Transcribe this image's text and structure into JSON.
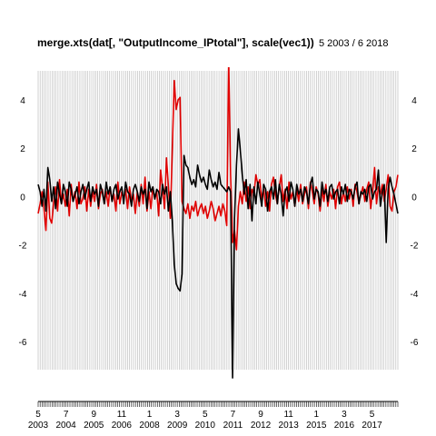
{
  "chart_data": {
    "type": "line",
    "title": "merge.xts(dat[, \"OutputIncome_IPtotal\"], scale(vec1))",
    "date_range_label": "5 2003 /  6 2018",
    "x_range": [
      "2003-05",
      "2018-06"
    ],
    "ylim": [
      -7.8,
      5.2
    ],
    "y_ticks": [
      -6,
      -4,
      -2,
      0,
      2,
      4
    ],
    "y_tick_labels": [
      "-6",
      "-4",
      "-2",
      "0",
      "2",
      "4"
    ],
    "x_tick_labels": [
      {
        "month": "5",
        "year": "2003",
        "date": "2003-05"
      },
      {
        "month": "7",
        "year": "2004",
        "date": "2004-07"
      },
      {
        "month": "9",
        "year": "2005",
        "date": "2005-09"
      },
      {
        "month": "11",
        "year": "2006",
        "date": "2006-11"
      },
      {
        "month": "1",
        "year": "2008",
        "date": "2008-01"
      },
      {
        "month": "3",
        "year": "2009",
        "date": "2009-03"
      },
      {
        "month": "5",
        "year": "2010",
        "date": "2010-05"
      },
      {
        "month": "7",
        "year": "2011",
        "date": "2011-07"
      },
      {
        "month": "9",
        "year": "2012",
        "date": "2012-09"
      },
      {
        "month": "11",
        "year": "2013",
        "date": "2013-11"
      },
      {
        "month": "1",
        "year": "2015",
        "date": "2015-01"
      },
      {
        "month": "3",
        "year": "2016",
        "date": "2016-03"
      },
      {
        "month": "5",
        "year": "2017",
        "date": "2017-05"
      }
    ],
    "grid": "vertical",
    "legend": "none",
    "series": [
      {
        "color": "#e00000",
        "values": [
          -0.7,
          -0.3,
          0.2,
          -0.5,
          -1.4,
          0.6,
          -0.9,
          -1.1,
          -0.2,
          0.4,
          -0.6,
          0.7,
          -0.3,
          0.1,
          -0.4,
          0.3,
          -0.8,
          0.5,
          -0.2,
          0.2,
          -0.5,
          0.6,
          -0.3,
          -0.1,
          0.4,
          -0.6,
          0.3,
          -0.4,
          0.2,
          -0.2,
          0.5,
          -0.5,
          0.1,
          0.3,
          -0.3,
          0.2,
          -0.4,
          0.4,
          -0.2,
          0.1,
          -0.6,
          0.6,
          -0.3,
          0.2,
          -0.1,
          0.3,
          -0.5,
          0.4,
          -0.2,
          0.1,
          -0.7,
          0.2,
          -0.4,
          0.5,
          -0.3,
          0.8,
          -0.6,
          0.2,
          -0.5,
          0.4,
          -0.1,
          0.2,
          -0.8,
          1.1,
          0.3,
          -0.5,
          1.6,
          0.4,
          -0.9,
          2.0,
          4.8,
          3.6,
          4.0,
          4.1,
          -0.2,
          -0.5,
          -0.7,
          -0.3,
          -0.9,
          -0.4,
          -0.6,
          -0.2,
          -0.8,
          -0.5,
          -0.3,
          -0.7,
          -0.4,
          -0.9,
          -0.6,
          -0.2,
          -0.5,
          -1.0,
          -0.7,
          -0.4,
          -0.8,
          -0.3,
          -0.6,
          -1.2,
          5.8,
          0.9,
          -1.9,
          -1.4,
          -2.2,
          -0.4,
          0.2,
          -0.3,
          0.6,
          -0.2,
          0.4,
          -0.5,
          0.3,
          0.1,
          0.9,
          0.5,
          0.7,
          -0.1,
          0.3,
          -0.4,
          0.2,
          -0.6,
          0.5,
          0.8,
          0.1,
          -0.3,
          0.4,
          0.9,
          -0.2,
          0.3,
          -0.5,
          0.6,
          -0.1,
          0.2,
          -0.4,
          0.3,
          -0.2,
          0.5,
          -0.3,
          0.1,
          0.4,
          -0.5,
          0.6,
          0.2,
          -0.3,
          0.4,
          0.1,
          -0.6,
          0.3,
          -0.2,
          0.5,
          -0.4,
          0.2,
          -0.1,
          0.3,
          -0.5,
          0.4,
          0.6,
          -0.3,
          0.2,
          -0.2,
          0.4,
          -0.1,
          0.3,
          -0.4,
          0.5,
          0.2,
          -0.3,
          0.1,
          0.4,
          -0.2,
          0.3,
          0.6,
          -0.5,
          0.2,
          1.2,
          -0.3,
          0.4,
          0.1,
          0.5,
          -0.2,
          0.3,
          0.9,
          -0.4,
          -0.6,
          0.2,
          0.4,
          0.9
        ]
      },
      {
        "color": "#000000",
        "values": [
          0.5,
          0.2,
          -0.4,
          0.3,
          -0.6,
          1.2,
          0.7,
          -0.2,
          0.4,
          -0.5,
          0.6,
          0.1,
          -0.3,
          0.5,
          0.2,
          -0.4,
          0.6,
          0.3,
          -0.2,
          0.1,
          0.4,
          -0.3,
          0.2,
          0.5,
          -0.1,
          0.3,
          0.6,
          -0.2,
          0.4,
          0.1,
          0.3,
          -0.4,
          0.5,
          0.2,
          -0.3,
          0.6,
          0.1,
          0.4,
          -0.2,
          0.3,
          0.5,
          -0.1,
          0.2,
          0.4,
          -0.3,
          0.6,
          0.2,
          0.1,
          -0.4,
          0.3,
          0.5,
          0.2,
          -0.2,
          0.4,
          0.1,
          0.3,
          -0.5,
          0.6,
          0.2,
          0.4,
          -0.1,
          0.3,
          0.2,
          -0.3,
          0.5,
          0.1,
          0.4,
          -0.6,
          0.2,
          -1.0,
          -2.8,
          -3.6,
          -3.8,
          -3.9,
          -3.2,
          1.7,
          1.3,
          1.2,
          0.8,
          0.5,
          0.7,
          0.4,
          1.3,
          0.9,
          0.6,
          0.8,
          0.5,
          0.3,
          1.1,
          0.7,
          0.4,
          0.6,
          0.3,
          1.0,
          0.5,
          0.4,
          0.3,
          0.2,
          0.4,
          0.2,
          -7.5,
          -0.9,
          1.3,
          2.8,
          1.9,
          0.9,
          0.1,
          0.7,
          -0.5,
          0.5,
          -1.0,
          0.4,
          -0.3,
          0.6,
          0.1,
          -0.4,
          0.5,
          0.3,
          -0.6,
          0.2,
          0.4,
          -0.1,
          0.7,
          -0.3,
          0.5,
          0.1,
          -0.8,
          0.2,
          0.4,
          -0.2,
          0.6,
          0.3,
          -0.4,
          0.5,
          0.1,
          0.3,
          -0.2,
          0.4,
          0.2,
          -0.3,
          0.5,
          0.8,
          -0.1,
          0.3,
          0.2,
          -0.4,
          0.6,
          0.1,
          0.3,
          -0.2,
          0.4,
          0.5,
          -0.1,
          0.2,
          0.3,
          -0.3,
          0.4,
          0.1,
          0.5,
          -0.2,
          0.3,
          0.2,
          -0.1,
          0.4,
          0.6,
          -0.3,
          0.2,
          0.1,
          0.3,
          -0.2,
          0.4,
          0.5,
          -0.1,
          0.2,
          0.3,
          1.1,
          -0.4,
          0.2,
          0.5,
          -1.9,
          0.3,
          0.8,
          0.4,
          0.1,
          -0.3,
          -0.7
        ]
      }
    ]
  }
}
